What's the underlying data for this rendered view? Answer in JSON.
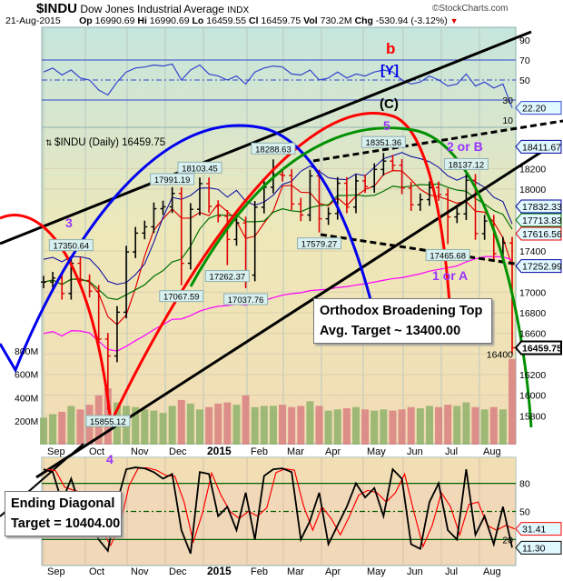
{
  "header": {
    "symbol": "$INDU",
    "name": "Dow Jones Industrial Average",
    "exchange": "INDX",
    "watermark": "©StockCharts.com",
    "date": "21-Aug-2015",
    "op_label": "Op",
    "op": "16990.69",
    "hi_label": "Hi",
    "hi": "16990.69",
    "lo_label": "Lo",
    "lo": "16459.55",
    "cl_label": "Cl",
    "cl": "16459.75",
    "vol_label": "Vol",
    "vol": "730.2M",
    "chg_label": "Chg",
    "chg": "-530.94 (-3.12%)",
    "chg_icon": "triangle-down-icon"
  },
  "price_legend": "$INDU (Daily) 16459.75",
  "annotations": {
    "wave_3": "3",
    "wave_4": "4",
    "wave_5": "5",
    "wave_b": "b",
    "wave_y": "[Y]",
    "wave_c": "(C)",
    "wave_2b": "2 or B",
    "wave_1a": "1 or A",
    "broadening_title": "Orthodox Broadening Top",
    "broadening_target": "Avg. Target ~ 13400.00",
    "diagonal_title": "Ending Diagonal",
    "diagonal_target": "Target = 10404.00"
  },
  "colors": {
    "up": "#000000",
    "down": "#e00000",
    "sma20": "#e00000",
    "sma50": "#007000",
    "sma200": "#ff00ff",
    "bb": "#0000a0",
    "rsi": "#3344cc",
    "accent_red": "#ff0000",
    "accent_purple": "#9933ff"
  },
  "chart_data": {
    "type": "ohlc",
    "x_ticks": [
      "Sep",
      "Oct",
      "Nov",
      "Dec",
      "2015",
      "Feb",
      "Mar",
      "Apr",
      "May",
      "Jun",
      "Jul",
      "Aug"
    ],
    "weekly_closes": [
      17098,
      17137,
      16987,
      17280,
      17113,
      17009,
      16544,
      16380,
      16805,
      17390,
      17573,
      17634,
      17810,
      17828,
      17958,
      17280,
      17804,
      18053,
      17832,
      17737,
      17511,
      17672,
      17165,
      17824,
      18019,
      18140,
      18133,
      17856,
      17749,
      18128,
      17712,
      17763,
      18057,
      17826,
      18080,
      18024,
      18191,
      18272,
      18232,
      18011,
      17849,
      17898,
      18015,
      17947,
      17730,
      17760,
      18086,
      17568,
      17690,
      17373,
      17477,
      16460
    ],
    "volume_millions": [
      230,
      260,
      280,
      330,
      300,
      340,
      420,
      480,
      360,
      330,
      320,
      300,
      290,
      270,
      330,
      380,
      350,
      300,
      320,
      350,
      360,
      340,
      420,
      320,
      330,
      330,
      340,
      320,
      330,
      370,
      330,
      290,
      300,
      310,
      320,
      300,
      290,
      300,
      290,
      300,
      320,
      310,
      330,
      320,
      340,
      330,
      360,
      320,
      300,
      320,
      300,
      730
    ],
    "price_axis": {
      "ticks": [
        "18200",
        "18000",
        "17400",
        "17000",
        "16800",
        "16600",
        "16400",
        "16200",
        "16000",
        "15800"
      ],
      "range": [
        15700,
        18600
      ]
    },
    "volume_axis": {
      "ticks": [
        "800M",
        "600M",
        "400M",
        "200M"
      ]
    },
    "labeled_points": [
      {
        "label": "17350.64",
        "value": 17350.64,
        "week": 3
      },
      {
        "label": "15855.12",
        "value": 15855.12,
        "week": 7
      },
      {
        "label": "17991.19",
        "value": 17991.19,
        "week": 14
      },
      {
        "label": "18103.45",
        "value": 18103.45,
        "week": 17
      },
      {
        "label": "17067.59",
        "value": 17067.59,
        "week": 15
      },
      {
        "label": "17262.37",
        "value": 17262.37,
        "week": 20
      },
      {
        "label": "17037.76",
        "value": 17037.76,
        "week": 22
      },
      {
        "label": "18288.63",
        "value": 18288.63,
        "week": 25
      },
      {
        "label": "17579.27",
        "value": 17579.27,
        "week": 30
      },
      {
        "label": "18351.36",
        "value": 18351.36,
        "week": 37
      },
      {
        "label": "17465.68",
        "value": 17465.68,
        "week": 44
      },
      {
        "label": "18137.12",
        "value": 18137.12,
        "week": 46
      }
    ],
    "right_tags": [
      {
        "label": "18411.67",
        "value": 18411.67,
        "color": "#0000a0"
      },
      {
        "label": "17832.33",
        "value": 17832.33,
        "color": "#0000a0"
      },
      {
        "label": "17713.83",
        "value": 17713.83,
        "color": "#007000"
      },
      {
        "label": "17616.56",
        "value": 17616.56,
        "color": "#e00000"
      },
      {
        "label": "17252.99",
        "value": 17252.99,
        "color": "#0000a0"
      },
      {
        "label": "16459.75",
        "value": 16459.75,
        "color": "#000000"
      }
    ],
    "rsi": {
      "ticks": [
        "90",
        "70",
        "50",
        "30",
        "10"
      ],
      "current": "22.20",
      "values": [
        58,
        62,
        55,
        60,
        52,
        50,
        40,
        35,
        48,
        58,
        62,
        63,
        65,
        64,
        66,
        50,
        60,
        65,
        56,
        54,
        50,
        54,
        46,
        58,
        62,
        64,
        63,
        56,
        55,
        60,
        50,
        52,
        58,
        52,
        56,
        54,
        58,
        60,
        58,
        50,
        46,
        48,
        54,
        50,
        44,
        46,
        56,
        44,
        48,
        42,
        46,
        22.2
      ]
    },
    "stochastic": {
      "ticks": [
        "80",
        "50",
        "20"
      ],
      "current_fast": "11.30",
      "current_slow": "31.41",
      "values": [
        95,
        92,
        60,
        85,
        55,
        40,
        20,
        8,
        60,
        95,
        97,
        96,
        92,
        85,
        90,
        30,
        5,
        92,
        90,
        45,
        55,
        30,
        70,
        20,
        88,
        95,
        96,
        92,
        20,
        40,
        70,
        15,
        35,
        55,
        80,
        65,
        75,
        45,
        95,
        85,
        15,
        10,
        60,
        80,
        30,
        20,
        95,
        25,
        45,
        15,
        55,
        11.3
      ]
    }
  }
}
